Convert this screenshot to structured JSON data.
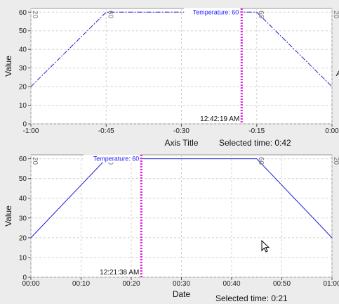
{
  "chart_data": [
    {
      "type": "line",
      "xlabel": "Axis Title",
      "ylabel": "Value",
      "x_ticks": [
        "-1:00",
        "-0:45",
        "-0:30",
        "-0:15",
        "0:00"
      ],
      "y_ticks": [
        "0",
        "10",
        "20",
        "30",
        "40",
        "50",
        "60"
      ],
      "xlim": [
        -60,
        0
      ],
      "ylim": [
        0,
        62
      ],
      "grid": true,
      "line_style": "dashdot",
      "series": [
        {
          "x": [
            -60,
            -45,
            -15,
            0
          ],
          "y": [
            20,
            60,
            60,
            20
          ],
          "point_labels": [
            "20",
            "60",
            "60",
            "20"
          ]
        }
      ],
      "cursor": {
        "x": -18,
        "timestamp": "12:42:19 AM",
        "tooltip": "Temperature: 60"
      },
      "selected_time": "Selected time: 0:42",
      "overflow_label": "A"
    },
    {
      "type": "line",
      "xlabel": "Date",
      "ylabel": "Value",
      "x_ticks": [
        "00:00",
        "00:10",
        "00:20",
        "00:30",
        "00:40",
        "00:50",
        "01:00"
      ],
      "y_ticks": [
        "0",
        "10",
        "20",
        "30",
        "40",
        "50",
        "60"
      ],
      "xlim": [
        0,
        60
      ],
      "ylim": [
        0,
        62
      ],
      "grid": true,
      "line_style": "solid",
      "series": [
        {
          "x": [
            0,
            15,
            45,
            60
          ],
          "y": [
            20,
            60,
            60,
            20
          ],
          "point_labels": [
            "20",
            "60",
            "60",
            "20"
          ]
        }
      ],
      "cursor": {
        "x": 22,
        "timestamp": "12:21:38 AM",
        "tooltip": "Temperature: 60"
      },
      "selected_time": "Selected time: 0:21"
    }
  ],
  "colors": {
    "series": "#1f1fd6",
    "cursor": "#e020e0",
    "grid": "#d0d0d0",
    "plot_bg": "#ffffff"
  },
  "icons": {
    "pointer": "mouse-cursor-icon"
  }
}
